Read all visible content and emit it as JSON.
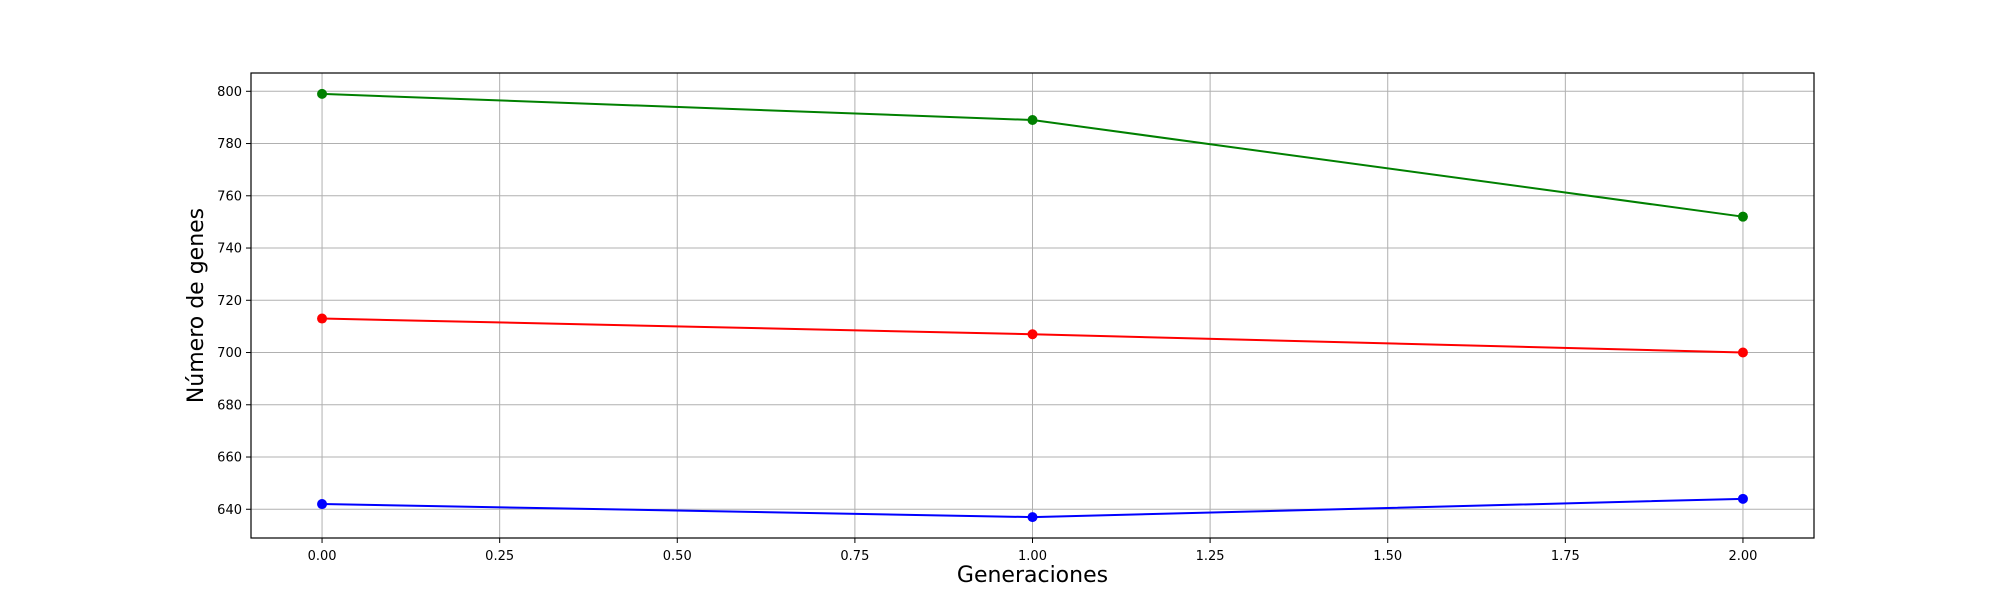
{
  "chart_data": {
    "type": "line",
    "title": "",
    "xlabel": "Generaciones",
    "ylabel": "Número de genes",
    "xlim": [
      -0.1,
      2.1
    ],
    "ylim": [
      629,
      807
    ],
    "grid": true,
    "x_ticks": [
      "0.00",
      "0.25",
      "0.50",
      "0.75",
      "1.00",
      "1.25",
      "1.50",
      "1.75",
      "2.00"
    ],
    "y_ticks": [
      "640",
      "660",
      "680",
      "700",
      "720",
      "740",
      "760",
      "780",
      "800"
    ],
    "x": [
      0,
      1,
      2
    ],
    "series": [
      {
        "color": "#008000",
        "values": [
          799,
          789,
          752
        ]
      },
      {
        "color": "#ff0000",
        "values": [
          713,
          707,
          700
        ]
      },
      {
        "color": "#0000ff",
        "values": [
          642,
          637,
          644
        ]
      }
    ]
  }
}
